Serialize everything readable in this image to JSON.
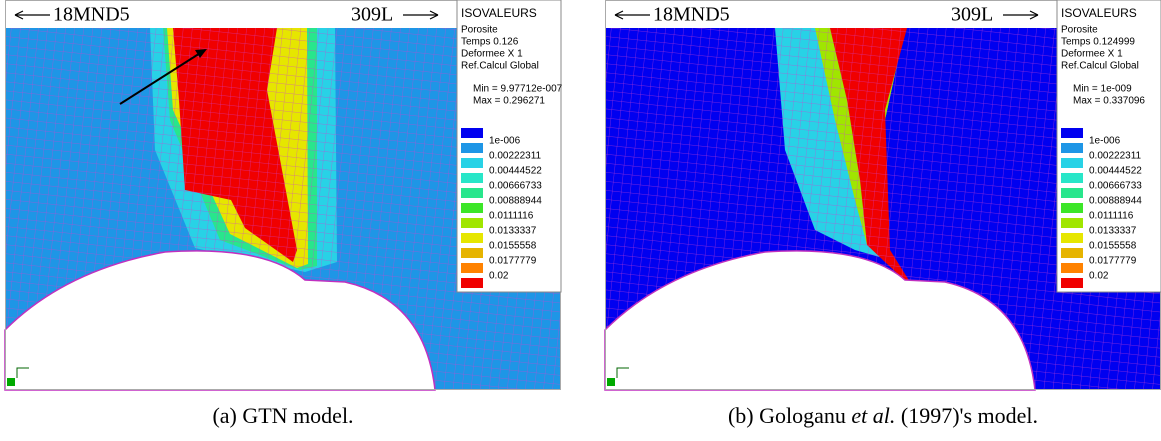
{
  "panels": [
    {
      "left_label": "18MND5",
      "right_label": "309L",
      "legend": {
        "title": "ISOVALEURS",
        "lines": [
          "Porosite",
          "Temps 0.126",
          "Deformee X 1",
          "Ref.Calcul Global"
        ],
        "min": "Min = 9.97712e-007",
        "max": "Max = 0.296271",
        "levels": [
          "1e-006",
          "0.00222311",
          "0.00444522",
          "0.00666733",
          "0.00888944",
          "0.0111116",
          "0.0133337",
          "0.0155558",
          "0.0177779",
          "0.02"
        ],
        "swatch_colors": [
          "#0000f0",
          "#1e96e6",
          "#28d2e6",
          "#28e6c8",
          "#28e68c",
          "#3ce628",
          "#a0e600",
          "#e6e600",
          "#e6b400",
          "#ff8200",
          "#f00000"
        ]
      },
      "caption": [
        "(a) GTN model."
      ]
    },
    {
      "left_label": "18MND5",
      "right_label": "309L",
      "legend": {
        "title": "ISOVALEURS",
        "lines": [
          "Porosite",
          "Temps 0.124999",
          "Deformee X 1",
          "Ref.Calcul Global"
        ],
        "min": "Min = 1e-009",
        "max": "Max = 0.337096",
        "levels": [
          "1e-006",
          "0.00222311",
          "0.00444522",
          "0.00666733",
          "0.00888944",
          "0.0111116",
          "0.0133337",
          "0.0155558",
          "0.0177779",
          "0.02"
        ],
        "swatch_colors": [
          "#0000f0",
          "#1e96e6",
          "#28d2e6",
          "#28e6c8",
          "#28e68c",
          "#3ce628",
          "#a0e600",
          "#e6e600",
          "#e6b400",
          "#ff8200",
          "#f00000"
        ]
      },
      "caption": [
        "(b) Gologanu ",
        "et al.",
        " (1997)'s model."
      ]
    }
  ]
}
